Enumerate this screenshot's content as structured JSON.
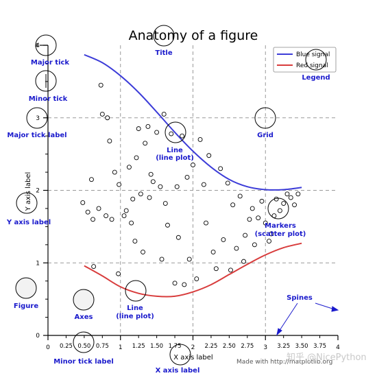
{
  "chart_data": {
    "type": "line",
    "title": "Anatomy of a figure",
    "xlabel": "X axis label",
    "ylabel": "Y axis label",
    "xlim": [
      0,
      4
    ],
    "ylim": [
      0,
      4
    ],
    "grid": true,
    "legend": "top-right",
    "major_xticks": [
      "0",
      "1",
      "2",
      "3",
      "4"
    ],
    "minor_xticks": [
      "0.25",
      "0.50",
      "0.75",
      "1.25",
      "1.50",
      "1.75",
      "2.25",
      "2.50",
      "2.75",
      "3.25",
      "3.50",
      "3.75"
    ],
    "major_yticks": [
      "0",
      "1",
      "2",
      "3",
      "4"
    ],
    "series": [
      {
        "name": "Blue signal",
        "color": "#3c3cd8",
        "x": [
          0.5,
          0.75,
          1.0,
          1.25,
          1.5,
          1.75,
          2.0,
          2.25,
          2.5,
          2.75,
          3.0,
          3.25,
          3.5
        ],
        "y": [
          3.87,
          3.76,
          3.58,
          3.35,
          3.08,
          2.8,
          2.54,
          2.32,
          2.15,
          2.05,
          2.01,
          2.01,
          2.04
        ]
      },
      {
        "name": "Red signal",
        "color": "#d83c3c",
        "x": [
          0.5,
          0.75,
          1.0,
          1.25,
          1.5,
          1.75,
          2.0,
          2.25,
          2.5,
          2.75,
          3.0,
          3.25,
          3.5
        ],
        "y": [
          0.96,
          0.82,
          0.67,
          0.58,
          0.54,
          0.54,
          0.6,
          0.7,
          0.84,
          0.98,
          1.11,
          1.21,
          1.27
        ]
      },
      {
        "name": "Markers",
        "type": "scatter",
        "x": [
          0.48,
          0.55,
          0.6,
          0.62,
          0.63,
          0.7,
          0.73,
          0.75,
          0.8,
          0.82,
          0.85,
          0.88,
          0.92,
          0.97,
          0.98,
          1.05,
          1.08,
          1.12,
          1.15,
          1.17,
          1.2,
          1.22,
          1.25,
          1.28,
          1.31,
          1.34,
          1.38,
          1.4,
          1.42,
          1.45,
          1.5,
          1.55,
          1.57,
          1.6,
          1.62,
          1.65,
          1.7,
          1.75,
          1.78,
          1.8,
          1.85,
          1.88,
          1.92,
          1.95,
          2.0,
          2.05,
          2.1,
          2.15,
          2.18,
          2.22,
          2.28,
          2.32,
          2.38,
          2.42,
          2.48,
          2.52,
          2.55,
          2.6,
          2.65,
          2.7,
          2.72,
          2.78,
          2.82,
          2.85,
          2.9,
          2.95,
          3.0,
          3.05,
          3.08,
          3.12,
          3.15,
          3.2,
          3.25,
          3.3,
          3.35,
          3.4,
          3.45
        ],
        "y": [
          1.83,
          1.7,
          2.15,
          1.6,
          0.95,
          1.75,
          3.45,
          3.05,
          1.65,
          3.0,
          2.68,
          1.6,
          2.25,
          0.85,
          2.08,
          1.65,
          1.72,
          2.32,
          1.55,
          1.88,
          1.3,
          2.45,
          2.85,
          1.95,
          1.15,
          2.65,
          2.88,
          1.9,
          2.22,
          2.12,
          2.8,
          2.05,
          1.05,
          3.05,
          1.82,
          1.52,
          2.78,
          0.72,
          2.05,
          1.35,
          2.75,
          0.7,
          2.18,
          1.05,
          2.35,
          0.78,
          2.7,
          2.08,
          1.55,
          2.48,
          1.15,
          0.92,
          2.3,
          1.32,
          2.1,
          0.9,
          1.8,
          1.2,
          1.92,
          1.02,
          1.38,
          1.6,
          1.75,
          1.25,
          1.62,
          1.85,
          1.55,
          1.3,
          1.4,
          1.65,
          1.88,
          1.72,
          1.82,
          1.95,
          1.9,
          1.8,
          1.95
        ]
      }
    ],
    "annotations": [
      "Major tick",
      "Minor tick",
      "Major tick label",
      "Y axis label",
      "Figure",
      "Axes",
      "Line\n(line plot)",
      "Minor tick label",
      "X axis label",
      "Title",
      "Legend",
      "Grid",
      "Markers\n(scatter plot)",
      "Spines"
    ]
  },
  "labels": {
    "title": "Title",
    "legend": "Legend",
    "major_tick": "Major tick",
    "minor_tick": "Minor tick",
    "major_tick_label": "Major tick label",
    "grid": "Grid",
    "line1_a": "Line",
    "line1_b": "(line plot)",
    "y_axis_label": "Y axis label",
    "markers_a": "Markers",
    "markers_b": "(scatter plot)",
    "figure": "Figure",
    "axes": "Axes",
    "line2_a": "Line",
    "line2_b": "(line plot)",
    "spines": "Spines",
    "minor_tick_label": "Minor tick label",
    "x_axis_label": "X axis label"
  },
  "watermark": "Made with http://matplotlib.org",
  "watermark_overlay": "知乎 @NicePython",
  "colors": {
    "annotation": "#1a1acc",
    "grid": "#999999",
    "blue": "#3c3cd8",
    "red": "#d83c3c"
  }
}
